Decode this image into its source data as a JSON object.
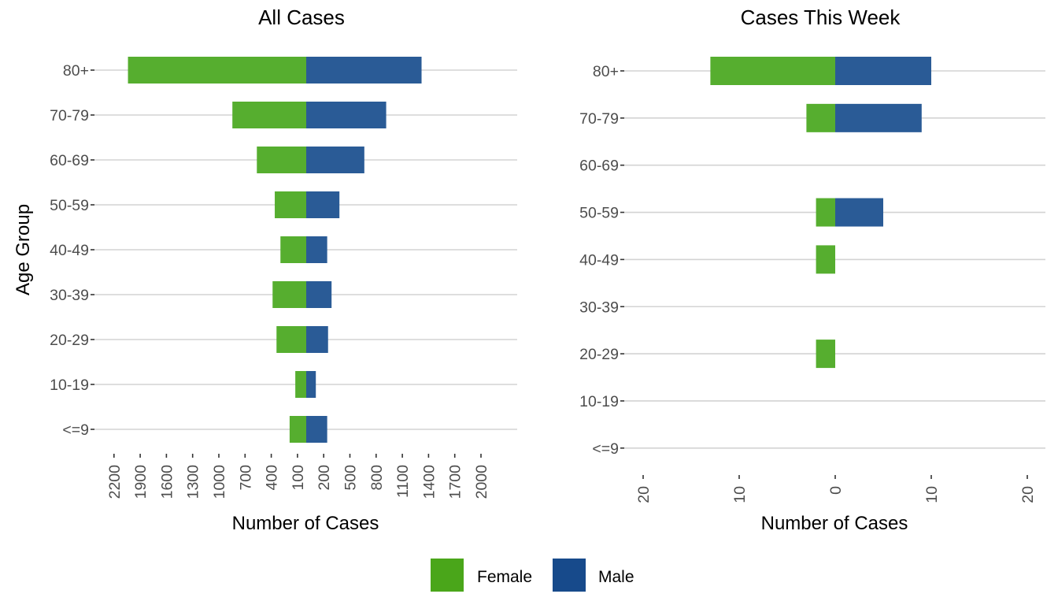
{
  "chart_data": [
    {
      "type": "bar",
      "orientation": "horizontal-diverging",
      "title": "All Cases",
      "xlabel": "Number of Cases",
      "ylabel": "Age Group",
      "categories": [
        "<=9",
        "10-19",
        "20-29",
        "30-39",
        "40-49",
        "50-59",
        "60-69",
        "70-79",
        "80+"
      ],
      "series": [
        {
          "name": "Female",
          "direction": "left",
          "values": [
            190,
            125,
            340,
            385,
            295,
            360,
            565,
            845,
            2040
          ]
        },
        {
          "name": "Male",
          "direction": "right",
          "values": [
            240,
            110,
            250,
            290,
            240,
            380,
            665,
            915,
            1320
          ]
        }
      ],
      "xticks": [
        -2200,
        -1900,
        -1600,
        -1300,
        -1000,
        -700,
        -400,
        -100,
        200,
        500,
        800,
        1100,
        1400,
        1700,
        2000
      ],
      "xtick_labels": [
        "2200",
        "1900",
        "1600",
        "1300",
        "1000",
        "700",
        "400",
        "100",
        "200",
        "500",
        "800",
        "1100",
        "1400",
        "1700",
        "2000"
      ],
      "xlim": [
        -2400,
        2400
      ],
      "grid": true
    },
    {
      "type": "bar",
      "orientation": "horizontal-diverging",
      "title": "Cases This Week",
      "xlabel": "Number of Cases",
      "ylabel": "",
      "categories": [
        "<=9",
        "10-19",
        "20-29",
        "30-39",
        "40-49",
        "50-59",
        "60-69",
        "70-79",
        "80+"
      ],
      "series": [
        {
          "name": "Female",
          "direction": "left",
          "values": [
            0,
            0,
            2,
            0,
            2,
            2,
            0,
            3,
            13
          ]
        },
        {
          "name": "Male",
          "direction": "right",
          "values": [
            0,
            0,
            0,
            0,
            0,
            5,
            0,
            9,
            10
          ]
        }
      ],
      "xticks": [
        -20,
        -10,
        0,
        10,
        20
      ],
      "xtick_labels": [
        "20",
        "10",
        "0",
        "10",
        "20"
      ],
      "xlim": [
        -22,
        22
      ],
      "grid": true
    }
  ],
  "legend": {
    "position": "bottom",
    "items": [
      {
        "label": "Female",
        "color": "#4aa61a"
      },
      {
        "label": "Male",
        "color": "#174a8b"
      }
    ]
  },
  "colors": {
    "female_bar": "#56ae2f",
    "male_bar": "#2a5b96"
  }
}
